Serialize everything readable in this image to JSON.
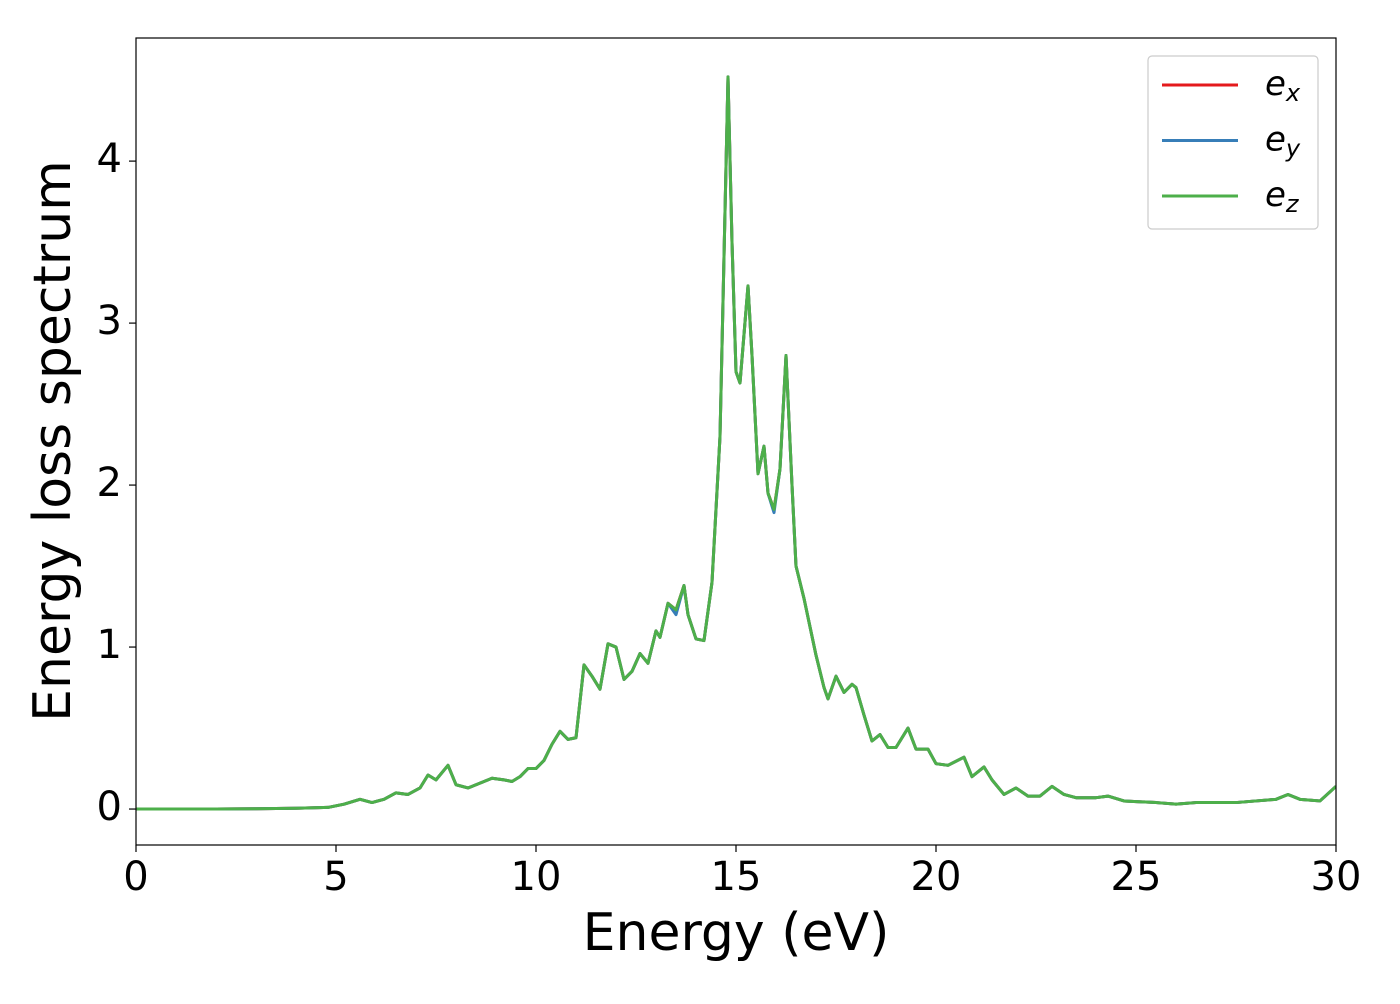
{
  "chart_data": {
    "type": "line",
    "xlabel": "Energy (eV)",
    "ylabel": "Energy loss spectrum",
    "x": [
      0,
      1,
      2,
      3,
      4,
      4.8,
      5.2,
      5.6,
      5.9,
      6.2,
      6.5,
      6.8,
      7.1,
      7.3,
      7.5,
      7.8,
      8.0,
      8.3,
      8.6,
      8.9,
      9.2,
      9.4,
      9.6,
      9.8,
      10.0,
      10.2,
      10.4,
      10.6,
      10.8,
      11.0,
      11.2,
      11.4,
      11.6,
      11.8,
      12.0,
      12.2,
      12.4,
      12.6,
      12.8,
      13.0,
      13.1,
      13.3,
      13.5,
      13.7,
      13.8,
      14.0,
      14.2,
      14.4,
      14.6,
      14.8,
      14.9,
      15.0,
      15.1,
      15.3,
      15.4,
      15.55,
      15.7,
      15.8,
      15.95,
      16.1,
      16.25,
      16.4,
      16.5,
      16.7,
      17.0,
      17.2,
      17.3,
      17.5,
      17.7,
      17.9,
      18.0,
      18.2,
      18.4,
      18.6,
      18.8,
      19.0,
      19.3,
      19.5,
      19.8,
      20.0,
      20.3,
      20.7,
      20.9,
      21.2,
      21.4,
      21.7,
      22.0,
      22.3,
      22.6,
      22.9,
      23.2,
      23.5,
      24.0,
      24.3,
      24.7,
      25.5,
      26.0,
      26.5,
      27.0,
      27.5,
      28.0,
      28.5,
      28.8,
      29.1,
      29.6,
      30.0
    ],
    "series": [
      {
        "name": "ex",
        "color": "#e41a1c",
        "values": [
          0,
          0,
          0,
          0.002,
          0.005,
          0.01,
          0.03,
          0.06,
          0.04,
          0.06,
          0.1,
          0.09,
          0.13,
          0.21,
          0.18,
          0.27,
          0.15,
          0.13,
          0.16,
          0.19,
          0.18,
          0.17,
          0.2,
          0.25,
          0.25,
          0.3,
          0.4,
          0.48,
          0.43,
          0.44,
          0.89,
          0.82,
          0.74,
          1.02,
          1.0,
          0.8,
          0.85,
          0.96,
          0.9,
          1.1,
          1.06,
          1.27,
          1.23,
          1.38,
          1.2,
          1.05,
          1.04,
          1.4,
          2.3,
          4.52,
          3.5,
          2.7,
          2.63,
          3.23,
          2.8,
          2.07,
          2.24,
          1.95,
          1.85,
          2.1,
          2.8,
          2.0,
          1.5,
          1.3,
          0.95,
          0.75,
          0.68,
          0.82,
          0.72,
          0.77,
          0.75,
          0.58,
          0.42,
          0.46,
          0.38,
          0.38,
          0.5,
          0.37,
          0.37,
          0.28,
          0.27,
          0.32,
          0.2,
          0.26,
          0.18,
          0.09,
          0.13,
          0.08,
          0.08,
          0.14,
          0.09,
          0.07,
          0.07,
          0.08,
          0.05,
          0.04,
          0.03,
          0.04,
          0.04,
          0.04,
          0.05,
          0.06,
          0.09,
          0.06,
          0.05,
          0.14
        ]
      },
      {
        "name": "ey",
        "color": "#377eb8",
        "values": [
          0,
          0,
          0,
          0.002,
          0.005,
          0.01,
          0.03,
          0.06,
          0.04,
          0.06,
          0.1,
          0.09,
          0.13,
          0.21,
          0.18,
          0.27,
          0.15,
          0.13,
          0.16,
          0.19,
          0.18,
          0.17,
          0.2,
          0.25,
          0.25,
          0.3,
          0.4,
          0.48,
          0.43,
          0.44,
          0.89,
          0.82,
          0.74,
          1.02,
          1.0,
          0.8,
          0.85,
          0.96,
          0.9,
          1.1,
          1.06,
          1.27,
          1.2,
          1.38,
          1.2,
          1.05,
          1.04,
          1.4,
          2.3,
          4.52,
          3.5,
          2.7,
          2.63,
          3.23,
          2.8,
          2.07,
          2.24,
          1.95,
          1.83,
          2.1,
          2.8,
          2.0,
          1.5,
          1.3,
          0.95,
          0.75,
          0.68,
          0.82,
          0.72,
          0.77,
          0.75,
          0.58,
          0.42,
          0.46,
          0.38,
          0.38,
          0.5,
          0.37,
          0.37,
          0.28,
          0.27,
          0.32,
          0.2,
          0.26,
          0.18,
          0.09,
          0.13,
          0.08,
          0.08,
          0.14,
          0.09,
          0.07,
          0.07,
          0.08,
          0.05,
          0.04,
          0.03,
          0.04,
          0.04,
          0.04,
          0.05,
          0.06,
          0.09,
          0.06,
          0.05,
          0.14
        ]
      },
      {
        "name": "ez",
        "color": "#4daf4a",
        "values": [
          0,
          0,
          0,
          0.002,
          0.005,
          0.01,
          0.03,
          0.06,
          0.04,
          0.06,
          0.1,
          0.09,
          0.13,
          0.21,
          0.18,
          0.27,
          0.15,
          0.13,
          0.16,
          0.19,
          0.18,
          0.17,
          0.2,
          0.25,
          0.25,
          0.3,
          0.4,
          0.48,
          0.43,
          0.44,
          0.89,
          0.82,
          0.74,
          1.02,
          1.0,
          0.8,
          0.85,
          0.96,
          0.9,
          1.1,
          1.06,
          1.27,
          1.23,
          1.38,
          1.2,
          1.05,
          1.04,
          1.4,
          2.3,
          4.52,
          3.5,
          2.7,
          2.63,
          3.23,
          2.8,
          2.07,
          2.24,
          1.95,
          1.85,
          2.1,
          2.8,
          2.0,
          1.5,
          1.3,
          0.95,
          0.75,
          0.68,
          0.82,
          0.72,
          0.77,
          0.75,
          0.58,
          0.42,
          0.46,
          0.38,
          0.38,
          0.5,
          0.37,
          0.37,
          0.28,
          0.27,
          0.32,
          0.2,
          0.26,
          0.18,
          0.09,
          0.13,
          0.08,
          0.08,
          0.14,
          0.09,
          0.07,
          0.07,
          0.08,
          0.05,
          0.04,
          0.03,
          0.04,
          0.04,
          0.04,
          0.05,
          0.06,
          0.09,
          0.06,
          0.05,
          0.14
        ]
      }
    ],
    "xlim": [
      0,
      30
    ],
    "xticks": [
      0,
      5,
      10,
      15,
      20,
      25,
      30
    ],
    "ylim": [
      -0.222,
      4.76
    ],
    "yticks": [
      0,
      1,
      2,
      3,
      4
    ],
    "legend": "upper right"
  }
}
